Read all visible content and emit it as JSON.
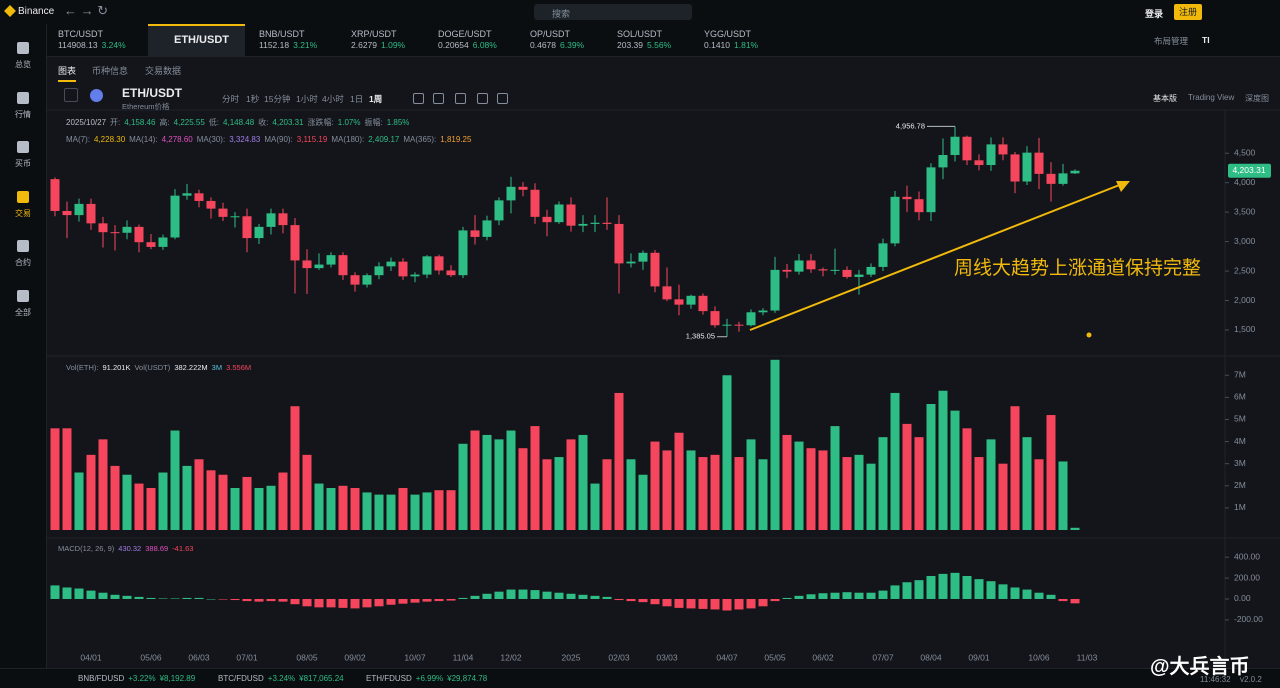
{
  "top_bar": {
    "brand": "Binance",
    "search": "搜索",
    "login": "登录",
    "register": "注册"
  },
  "tickers": [
    {
      "pair": "BTC/USDT",
      "price": "114908.13",
      "change": "3.24%"
    },
    {
      "pair": "ETH/USDT"
    },
    {
      "pair": "BNB/USDT",
      "price": "1152.18",
      "change": "3.21%"
    },
    {
      "pair": "XRP/USDT",
      "price": "2.6279",
      "change": "1.09%"
    },
    {
      "pair": "DOGE/USDT",
      "price": "0.20654",
      "change": "6.08%"
    },
    {
      "pair": "OP/USDT",
      "price": "0.4678",
      "change": "6.39%"
    },
    {
      "pair": "SOL/USDT",
      "price": "203.39",
      "change": "5.56%"
    },
    {
      "pair": "YGG/USDT",
      "price": "0.1410",
      "change": "1.81%"
    }
  ],
  "layout_menu": "布局管理",
  "ti": "TI",
  "sidebar": [
    "总览",
    "行情",
    "买币",
    "交易",
    "合约",
    "全部"
  ],
  "tabs": [
    "图表",
    "币种信息",
    "交易数据"
  ],
  "symbol": {
    "pair": "ETH/USDT",
    "name": "Ethereum价格"
  },
  "intervals": [
    "分时",
    "1秒",
    "15分钟",
    "1小时",
    "4小时",
    "1日",
    "1周"
  ],
  "views": [
    "基本版",
    "Trading View",
    "深度图"
  ],
  "ohlc_info": {
    "date": "2025/10/27",
    "items": [
      {
        "label": "开:",
        "value": "4,158.46"
      },
      {
        "label": "高:",
        "value": "4,225.55"
      },
      {
        "label": "低:",
        "value": "4,148.48"
      },
      {
        "label": "收:",
        "value": "4,203.31"
      },
      {
        "label": "涨跌幅:",
        "value": "1.07%"
      },
      {
        "label": "振幅:",
        "value": "1.85%"
      }
    ]
  },
  "ma_info": [
    {
      "label": "MA(7):",
      "value": "4,228.30",
      "color": "#f0b90b"
    },
    {
      "label": "MA(14):",
      "value": "4,278.60",
      "color": "#e052c0"
    },
    {
      "label": "MA(30):",
      "value": "3,324.83",
      "color": "#a07ee8"
    },
    {
      "label": "MA(90):",
      "value": "3,115.19",
      "color": "#f6465d"
    },
    {
      "label": "MA(180):",
      "value": "2,409.17",
      "color": "#2ebd85"
    },
    {
      "label": "MA(365):",
      "value": "1,819.25",
      "color": "#f0a030"
    }
  ],
  "vol_info": [
    {
      "label": "Vol(ETH):",
      "value": "91.201K"
    },
    {
      "label": "Vol(USDT)",
      "value": "382.222M"
    },
    {
      "label": "3M",
      "value": "3.556M"
    }
  ],
  "macd_info": {
    "label": "MACD(12, 26, 9)",
    "values": [
      "430.32",
      "388.69",
      "-41.63"
    ]
  },
  "annotation": "周线大趋势上涨通道保持完整",
  "bottom_bar": {
    "items": [
      {
        "pair": "BNB/FDUSD",
        "change": "+3.22%",
        "price": "¥8,192.89"
      },
      {
        "pair": "BTC/FDUSD",
        "change": "+3.24%",
        "price": "¥817,065.24"
      },
      {
        "pair": "ETH/FDUSD",
        "change": "+6.99%",
        "price": "¥29,874.78"
      }
    ],
    "time": "11:46:32",
    "version": "v2.0.2"
  },
  "watermark": "@大兵言币",
  "chart_data": {
    "type": "candlestick",
    "up_color": "#2ebd85",
    "down_color": "#f6465d",
    "categories": [
      null,
      null,
      null,
      "04/01",
      null,
      null,
      null,
      null,
      "05/06",
      null,
      null,
      null,
      "06/03",
      null,
      null,
      null,
      "07/01",
      null,
      null,
      null,
      null,
      "08/05",
      null,
      null,
      null,
      "09/02",
      null,
      null,
      null,
      null,
      "10/07",
      null,
      null,
      null,
      "11/04",
      null,
      null,
      null,
      "12/02",
      null,
      null,
      null,
      null,
      "2025",
      null,
      null,
      null,
      "02/03",
      null,
      null,
      null,
      "03/03",
      null,
      null,
      null,
      null,
      "04/07",
      null,
      null,
      null,
      "05/05",
      null,
      null,
      null,
      "06/02",
      null,
      null,
      null,
      null,
      "07/07",
      null,
      null,
      null,
      "08/04",
      null,
      null,
      null,
      "09/01",
      null,
      null,
      null,
      null,
      "10/06",
      null,
      null,
      null
    ],
    "x_next_label": "11/03",
    "open": [
      4060,
      3520,
      3450,
      3640,
      3310,
      3160,
      3150,
      3250,
      2990,
      2910,
      3070,
      3780,
      3820,
      3690,
      3560,
      3420,
      3430,
      3060,
      3250,
      3480,
      3280,
      2680,
      2550,
      2610,
      2770,
      2430,
      2270,
      2430,
      2580,
      2660,
      2410,
      2440,
      2750,
      2510,
      2430,
      3190,
      3080,
      3360,
      3700,
      3930,
      3880,
      3420,
      3330,
      3630,
      3270,
      3300,
      3320,
      3300,
      2630,
      2660,
      2810,
      2240,
      2020,
      1930,
      2080,
      1820,
      1580,
      1590,
      1580,
      1800,
      1830,
      2520,
      2490,
      2680,
      2530,
      2510,
      2520,
      2400,
      2440,
      2570,
      2970,
      3760,
      3720,
      3500,
      4260,
      4470,
      4780,
      4380,
      4300,
      4650,
      4480,
      4020,
      4510,
      4150,
      3980,
      4158.46
    ],
    "high": [
      4090,
      3680,
      3730,
      3730,
      3420,
      3280,
      3360,
      3290,
      3130,
      3120,
      3890,
      3980,
      3880,
      3750,
      3660,
      3500,
      3560,
      3300,
      3560,
      3560,
      3400,
      2870,
      2800,
      2820,
      2820,
      2480,
      2460,
      2650,
      2730,
      2720,
      2480,
      2770,
      2780,
      2600,
      3250,
      3450,
      3440,
      3750,
      4100,
      4010,
      3990,
      3540,
      3680,
      3750,
      3450,
      3450,
      3750,
      3450,
      2800,
      2850,
      2860,
      2560,
      2270,
      2100,
      2120,
      1900,
      1690,
      1640,
      1850,
      1870,
      2740,
      2620,
      2790,
      2790,
      2560,
      2880,
      2580,
      2520,
      2630,
      3050,
      3860,
      3950,
      3850,
      4330,
      4750,
      4956.78,
      4800,
      4480,
      4770,
      4770,
      4520,
      4620,
      4760,
      4350,
      4320,
      4225.55
    ],
    "low": [
      3430,
      3060,
      3340,
      3200,
      2900,
      2850,
      3040,
      2820,
      2870,
      2860,
      3040,
      3710,
      3580,
      3390,
      3350,
      3240,
      2820,
      2960,
      3120,
      3140,
      2120,
      2110,
      2520,
      2560,
      2350,
      2150,
      2220,
      2360,
      2500,
      2350,
      2310,
      2380,
      2440,
      2400,
      2380,
      2950,
      3020,
      3280,
      3480,
      3770,
      3300,
      3090,
      3300,
      3170,
      3160,
      3160,
      3200,
      2120,
      2560,
      2520,
      2140,
      1990,
      1750,
      1860,
      1760,
      1540,
      1385.05,
      1470,
      1560,
      1750,
      1790,
      2380,
      2440,
      2470,
      2410,
      2440,
      2370,
      2100,
      2400,
      2500,
      2920,
      3500,
      3360,
      3350,
      4060,
      4360,
      4300,
      4210,
      4200,
      4380,
      3820,
      3960,
      3890,
      3680,
      3950,
      4148.48
    ],
    "close": [
      3520,
      3450,
      3640,
      3310,
      3160,
      3150,
      3250,
      2990,
      2910,
      3070,
      3780,
      3820,
      3690,
      3560,
      3420,
      3430,
      3060,
      3250,
      3480,
      3280,
      2680,
      2550,
      2610,
      2770,
      2430,
      2270,
      2430,
      2580,
      2660,
      2410,
      2440,
      2750,
      2510,
      2430,
      3190,
      3080,
      3360,
      3700,
      3930,
      3880,
      3420,
      3330,
      3630,
      3270,
      3300,
      3320,
      3300,
      2630,
      2660,
      2810,
      2240,
      2020,
      1930,
      2080,
      1820,
      1580,
      1590,
      1580,
      1800,
      1830,
      2520,
      2490,
      2680,
      2530,
      2510,
      2520,
      2400,
      2440,
      2570,
      2970,
      3760,
      3720,
      3500,
      4260,
      4470,
      4780,
      4380,
      4300,
      4650,
      4480,
      4020,
      4510,
      4150,
      3980,
      4158.46,
      4203.31
    ],
    "max_label": "4,956.78",
    "min_label": "1,385.05",
    "last_label": "4,203.31",
    "ylim": [
      1160,
      5200
    ],
    "yticks": [
      {
        "value": 1500,
        "label": "1,500"
      },
      {
        "value": 2000,
        "label": "2,000"
      },
      {
        "value": 2500,
        "label": "2,500"
      },
      {
        "value": 3000,
        "label": "3,000"
      },
      {
        "value": 3500,
        "label": "3,500"
      },
      {
        "value": 4000,
        "label": "4,000"
      },
      {
        "value": 4500,
        "label": "4,500"
      }
    ],
    "volume": {
      "values": [
        4.6,
        4.6,
        2.6,
        3.4,
        4.1,
        2.9,
        2.5,
        2.1,
        1.9,
        2.6,
        4.5,
        2.9,
        3.2,
        2.7,
        2.5,
        1.9,
        2.4,
        1.9,
        2.0,
        2.6,
        5.6,
        3.4,
        2.1,
        1.9,
        2.0,
        1.9,
        1.7,
        1.6,
        1.6,
        1.9,
        1.6,
        1.7,
        1.8,
        1.8,
        3.9,
        4.5,
        4.3,
        4.1,
        4.5,
        3.7,
        4.7,
        3.2,
        3.3,
        4.1,
        4.3,
        2.1,
        3.2,
        6.2,
        3.2,
        2.5,
        4.0,
        3.6,
        4.4,
        3.6,
        3.3,
        3.4,
        7.0,
        3.3,
        4.1,
        3.2,
        7.7,
        4.3,
        4.0,
        3.7,
        3.6,
        4.7,
        3.3,
        3.4,
        3.0,
        4.2,
        6.2,
        4.8,
        4.2,
        5.7,
        6.3,
        5.4,
        4.6,
        3.3,
        4.1,
        3.0,
        5.6,
        4.2,
        3.2,
        5.2,
        3.1,
        0.1
      ],
      "ylim": [
        0,
        7.6
      ],
      "yticks": [
        {
          "value": 1,
          "label": "1M"
        },
        {
          "value": 2,
          "label": "2M"
        },
        {
          "value": 3,
          "label": "3M"
        },
        {
          "value": 4,
          "label": "4M"
        },
        {
          "value": 5,
          "label": "5M"
        },
        {
          "value": 6,
          "label": "6M"
        },
        {
          "value": 7,
          "label": "7M"
        }
      ]
    },
    "macd": {
      "values": [
        130,
        110,
        100,
        80,
        60,
        40,
        30,
        20,
        10,
        5,
        5,
        10,
        10,
        0,
        -5,
        -10,
        -20,
        -25,
        -20,
        -25,
        -50,
        -70,
        -80,
        -80,
        -85,
        -90,
        -80,
        -70,
        -55,
        -45,
        -35,
        -25,
        -20,
        -15,
        10,
        30,
        50,
        70,
        90,
        90,
        85,
        70,
        60,
        50,
        40,
        30,
        20,
        -10,
        -20,
        -30,
        -50,
        -70,
        -85,
        -90,
        -95,
        -100,
        -110,
        -100,
        -90,
        -70,
        -20,
        10,
        30,
        45,
        55,
        60,
        65,
        60,
        60,
        80,
        130,
        160,
        180,
        220,
        240,
        250,
        220,
        190,
        170,
        140,
        110,
        90,
        60,
        40,
        -20,
        -41.63
      ],
      "ylim": [
        -440,
        545
      ],
      "yticks": [
        {
          "value": 400,
          "label": "400.00"
        },
        {
          "value": 200,
          "label": "200.00"
        },
        {
          "value": 0,
          "label": "0.00"
        },
        {
          "value": -200,
          "label": "-200.00"
        }
      ]
    }
  }
}
